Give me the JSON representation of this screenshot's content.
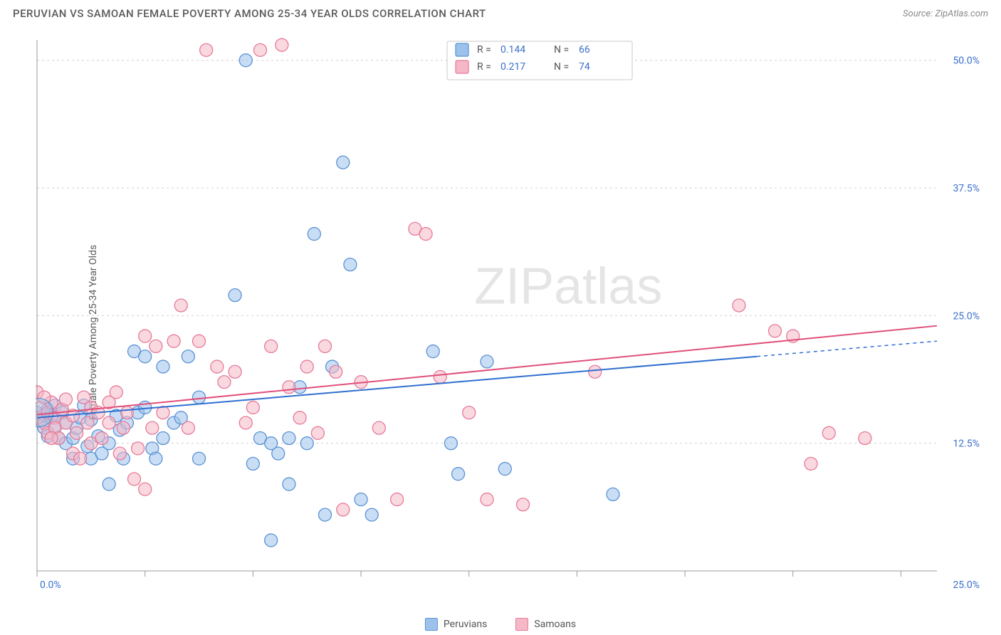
{
  "header": {
    "title": "PERUVIAN VS SAMOAN FEMALE POVERTY AMONG 25-34 YEAR OLDS CORRELATION CHART",
    "source_prefix": "Source: ",
    "source_name": "ZipAtlas.com"
  },
  "chart": {
    "type": "scatter",
    "y_axis_label": "Female Poverty Among 25-34 Year Olds",
    "xlim": [
      0,
      25
    ],
    "ylim": [
      0,
      52
    ],
    "x_ticks": [
      0,
      3,
      6,
      9,
      12,
      15,
      18,
      21,
      24
    ],
    "y_gridlines": [
      12.5,
      25.0,
      37.5,
      50.0
    ],
    "y_tick_labels": [
      "12.5%",
      "25.0%",
      "37.5%",
      "50.0%"
    ],
    "x_origin_label": "0.0%",
    "x_max_label": "25.0%",
    "background_color": "#ffffff",
    "grid_color": "#d0d0d0",
    "axis_color": "#999999",
    "tick_label_color": "#3b6fcc",
    "watermark": "ZIPatlas",
    "series": [
      {
        "name": "Peruvians",
        "fill": "#9cc2ec",
        "stroke": "#5b92d4",
        "fill_opacity": 0.55,
        "marker_r": 9,
        "R": "0.144",
        "N": "66",
        "trend": {
          "x1": 0,
          "y1": 15.0,
          "x2": 20.0,
          "y2": 21.0,
          "ext_x2": 25.0,
          "ext_y2": 22.5,
          "stroke": "#2f6fd0",
          "width": 2
        },
        "points": [
          [
            0.0,
            15.5
          ],
          [
            0.1,
            14.8
          ],
          [
            0.2,
            15.3
          ],
          [
            0.2,
            14.0
          ],
          [
            0.3,
            15.8
          ],
          [
            0.3,
            13.2
          ],
          [
            0.4,
            15.0
          ],
          [
            0.5,
            14.2
          ],
          [
            0.5,
            16.2
          ],
          [
            0.6,
            13.0
          ],
          [
            0.7,
            15.5
          ],
          [
            0.8,
            14.5
          ],
          [
            0.8,
            12.5
          ],
          [
            1.0,
            13.0
          ],
          [
            1.0,
            11.0
          ],
          [
            1.1,
            14.0
          ],
          [
            1.2,
            15.0
          ],
          [
            1.3,
            16.2
          ],
          [
            1.4,
            12.2
          ],
          [
            1.5,
            11.0
          ],
          [
            1.5,
            14.8
          ],
          [
            1.7,
            13.2
          ],
          [
            1.8,
            11.5
          ],
          [
            2.0,
            12.5
          ],
          [
            2.0,
            8.5
          ],
          [
            2.2,
            15.2
          ],
          [
            2.3,
            13.8
          ],
          [
            2.4,
            11.0
          ],
          [
            2.5,
            14.5
          ],
          [
            2.7,
            21.5
          ],
          [
            2.8,
            15.5
          ],
          [
            3.0,
            16.0
          ],
          [
            3.0,
            21.0
          ],
          [
            3.2,
            12.0
          ],
          [
            3.3,
            11.0
          ],
          [
            3.5,
            13.0
          ],
          [
            3.5,
            20.0
          ],
          [
            3.8,
            14.5
          ],
          [
            4.0,
            15.0
          ],
          [
            4.2,
            21.0
          ],
          [
            4.5,
            17.0
          ],
          [
            4.5,
            11.0
          ],
          [
            5.5,
            27.0
          ],
          [
            5.8,
            50.0
          ],
          [
            6.0,
            10.5
          ],
          [
            6.2,
            13.0
          ],
          [
            6.5,
            3.0
          ],
          [
            6.5,
            12.5
          ],
          [
            6.7,
            11.5
          ],
          [
            7.0,
            13.0
          ],
          [
            7.0,
            8.5
          ],
          [
            7.3,
            18.0
          ],
          [
            7.5,
            12.5
          ],
          [
            7.7,
            33.0
          ],
          [
            8.0,
            5.5
          ],
          [
            8.2,
            20.0
          ],
          [
            8.5,
            40.0
          ],
          [
            8.7,
            30.0
          ],
          [
            9.0,
            7.0
          ],
          [
            9.3,
            5.5
          ],
          [
            11.0,
            21.5
          ],
          [
            11.5,
            12.5
          ],
          [
            11.7,
            9.5
          ],
          [
            12.5,
            20.5
          ],
          [
            13.0,
            10.0
          ],
          [
            16.0,
            7.5
          ]
        ]
      },
      {
        "name": "Samoans",
        "fill": "#f4b8c6",
        "stroke": "#e77a99",
        "fill_opacity": 0.55,
        "marker_r": 9,
        "R": "0.217",
        "N": "74",
        "trend": {
          "x1": 0,
          "y1": 15.3,
          "x2": 25.0,
          "y2": 24.0,
          "stroke": "#e04f7a",
          "width": 2
        },
        "points": [
          [
            0.0,
            15.0
          ],
          [
            0.1,
            16.0
          ],
          [
            0.2,
            14.5
          ],
          [
            0.3,
            15.5
          ],
          [
            0.3,
            13.5
          ],
          [
            0.4,
            16.5
          ],
          [
            0.5,
            15.0
          ],
          [
            0.5,
            14.0
          ],
          [
            0.6,
            13.0
          ],
          [
            0.7,
            15.8
          ],
          [
            0.8,
            14.5
          ],
          [
            0.8,
            16.8
          ],
          [
            1.0,
            15.2
          ],
          [
            1.0,
            11.5
          ],
          [
            1.1,
            13.5
          ],
          [
            1.2,
            11.0
          ],
          [
            1.3,
            17.0
          ],
          [
            1.4,
            14.5
          ],
          [
            1.5,
            12.5
          ],
          [
            1.5,
            16.0
          ],
          [
            1.7,
            15.5
          ],
          [
            1.8,
            13.0
          ],
          [
            2.0,
            14.5
          ],
          [
            2.0,
            16.5
          ],
          [
            2.2,
            17.5
          ],
          [
            2.3,
            11.5
          ],
          [
            2.4,
            14.0
          ],
          [
            2.5,
            15.5
          ],
          [
            2.7,
            9.0
          ],
          [
            2.8,
            12.0
          ],
          [
            3.0,
            23.0
          ],
          [
            3.0,
            8.0
          ],
          [
            3.2,
            14.0
          ],
          [
            3.3,
            22.0
          ],
          [
            3.5,
            15.5
          ],
          [
            3.8,
            22.5
          ],
          [
            4.0,
            26.0
          ],
          [
            4.2,
            14.0
          ],
          [
            4.5,
            22.5
          ],
          [
            4.7,
            51.0
          ],
          [
            5.0,
            20.0
          ],
          [
            5.2,
            18.5
          ],
          [
            5.5,
            19.5
          ],
          [
            5.8,
            14.5
          ],
          [
            6.0,
            16.0
          ],
          [
            6.2,
            51.0
          ],
          [
            6.5,
            22.0
          ],
          [
            6.8,
            51.5
          ],
          [
            7.0,
            18.0
          ],
          [
            7.3,
            15.0
          ],
          [
            7.5,
            20.0
          ],
          [
            7.8,
            13.5
          ],
          [
            8.0,
            22.0
          ],
          [
            8.3,
            19.5
          ],
          [
            8.5,
            6.0
          ],
          [
            9.0,
            18.5
          ],
          [
            9.5,
            14.0
          ],
          [
            10.0,
            7.0
          ],
          [
            10.5,
            33.5
          ],
          [
            10.8,
            33.0
          ],
          [
            11.2,
            19.0
          ],
          [
            12.0,
            15.5
          ],
          [
            12.5,
            7.0
          ],
          [
            13.5,
            6.5
          ],
          [
            15.5,
            19.5
          ],
          [
            19.5,
            26.0
          ],
          [
            20.5,
            23.5
          ],
          [
            21.0,
            23.0
          ],
          [
            21.5,
            10.5
          ],
          [
            22.0,
            13.5
          ],
          [
            23.0,
            13.0
          ],
          [
            0.0,
            17.5
          ],
          [
            0.2,
            17.0
          ],
          [
            0.4,
            13.0
          ]
        ]
      }
    ],
    "legend_bottom": [
      {
        "label": "Peruvians",
        "fill": "#9cc2ec",
        "stroke": "#5b92d4"
      },
      {
        "label": "Samoans",
        "fill": "#f4b8c6",
        "stroke": "#e77a99"
      }
    ],
    "stats_box": {
      "rows": [
        {
          "swatch_fill": "#9cc2ec",
          "swatch_stroke": "#5b92d4",
          "R_label": "R =",
          "R": "0.144",
          "N_label": "N =",
          "N": "66"
        },
        {
          "swatch_fill": "#f4b8c6",
          "swatch_stroke": "#e77a99",
          "R_label": "R =",
          "R": "0.217",
          "N_label": "N =",
          "N": "74"
        }
      ]
    }
  }
}
